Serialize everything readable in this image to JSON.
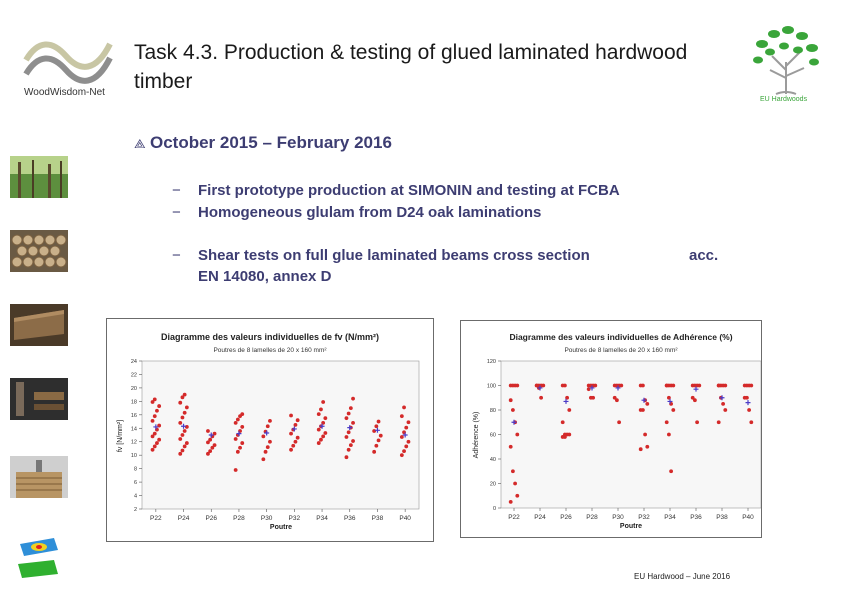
{
  "slide": {
    "title": "Task 4.3. Production & testing of glued laminated hardwood timber",
    "date_bullet": "October 2015 – February 2016",
    "subbullets": [
      "First prototype production at SIMONIN and testing at FCBA",
      "Homogeneous glulam from D24 oak laminations"
    ],
    "shear_line1": "Shear tests on full glue laminated beams cross section",
    "shear_acc": "acc.",
    "shear_line2": "EN 14080, annex D",
    "footer": "EU Hardwood – June 2016",
    "logo_left_text": "WoodWisdom-Net",
    "logo_right_text": "EU Hardwoods"
  },
  "icons": [
    "woodwisdom-logo-icon",
    "eu-hardwoods-tree-logo-icon",
    "forest-photo-icon",
    "log-pile-photo-icon",
    "timber-photo-icon",
    "workshop-photo-icon",
    "glulam-stack-photo-icon",
    "fem-model-icon"
  ],
  "colors": {
    "points": "#d42a2a",
    "means": "#4b3cc8",
    "title_text": "#1a1a1a",
    "bullet_text": "#3d3d72",
    "plot_bg": "#f7f7f7"
  },
  "chart_data": [
    {
      "type": "scatter",
      "title": "Diagramme des valeurs individuelles de fv (N/mm²)",
      "subtitle": "Poutres de 8 lamelles de 20 x 160 mm²",
      "xlabel": "Poutre",
      "ylabel": "fv [N/mm²]",
      "categories": [
        "P22",
        "P24",
        "P26",
        "P28",
        "P30",
        "P32",
        "P34",
        "P36",
        "P38",
        "P40"
      ],
      "ylim": [
        2,
        24
      ],
      "yticks": [
        2,
        4,
        6,
        8,
        10,
        12,
        14,
        16,
        18,
        20,
        22,
        24
      ],
      "grid": false,
      "series": [
        {
          "values": [
            [
              10.8,
              11.3,
              11.8,
              12.3,
              12.8,
              13.2,
              13.8,
              14.4,
              15.1,
              15.8,
              16.6,
              17.3,
              17.9,
              18.3
            ],
            [
              10.2,
              10.7,
              11.3,
              11.8,
              12.4,
              13.0,
              13.6,
              14.2,
              14.8,
              15.6,
              16.3,
              17.1,
              17.8,
              18.6,
              19.0
            ],
            [
              10.2,
              10.6,
              11.1,
              11.5,
              11.9,
              12.3,
              12.8,
              13.2,
              13.6
            ],
            [
              7.8,
              10.5,
              11.1,
              11.8,
              12.4,
              13.0,
              13.6,
              14.2,
              14.8,
              15.3,
              15.8,
              16.1
            ],
            [
              9.4,
              10.5,
              11.2,
              12.0,
              12.8,
              13.5,
              14.3,
              15.1
            ],
            [
              10.8,
              11.4,
              12.0,
              12.6,
              13.2,
              13.8,
              14.5,
              15.2,
              15.9
            ],
            [
              11.8,
              12.3,
              12.8,
              13.3,
              13.8,
              14.3,
              14.8,
              15.5,
              16.1,
              16.8,
              17.9
            ],
            [
              9.7,
              10.8,
              11.5,
              12.1,
              12.7,
              13.4,
              14.1,
              14.8,
              15.5,
              16.2,
              17.0,
              18.4
            ],
            [
              10.5,
              11.4,
              12.2,
              12.9,
              13.6,
              14.3,
              15.0
            ],
            [
              10.0,
              10.6,
              11.3,
              12.0,
              12.7,
              13.4,
              14.1,
              14.9,
              15.8,
              17.1
            ]
          ]
        },
        {
          "values": [
            14.2,
            14.3,
            13.0,
            13.2,
            13.3,
            13.9,
            14.3,
            14.1,
            13.7,
            13.0
          ]
        }
      ]
    },
    {
      "type": "scatter",
      "title": "Diagramme des valeurs individuelles de Adhérence (%)",
      "subtitle": "Poutres de 8 lamelles de 20 x 160 mm²",
      "xlabel": "Poutre",
      "ylabel": "Adhérence (%)",
      "categories": [
        "P22",
        "P24",
        "P26",
        "P28",
        "P30",
        "P32",
        "P34",
        "P36",
        "P38",
        "P40"
      ],
      "ylim": [
        0,
        120
      ],
      "yticks": [
        0,
        20,
        40,
        60,
        80,
        100,
        120
      ],
      "grid": false,
      "series": [
        {
          "values": [
            [
              100,
              100,
              100,
              100,
              88,
              80,
              70,
              60,
              50,
              30,
              20,
              10,
              5
            ],
            [
              100,
              100,
              100,
              100,
              100,
              98,
              90
            ],
            [
              100,
              100,
              90,
              80,
              70,
              60,
              60,
              60,
              58,
              58
            ],
            [
              100,
              100,
              100,
              100,
              97,
              90,
              90
            ],
            [
              100,
              100,
              100,
              100,
              90,
              88,
              70
            ],
            [
              100,
              100,
              88,
              85,
              80,
              80,
              60,
              50,
              48
            ],
            [
              100,
              100,
              100,
              100,
              100,
              90,
              85,
              80,
              70,
              60,
              30
            ],
            [
              100,
              100,
              100,
              100,
              90,
              88,
              70
            ],
            [
              100,
              100,
              100,
              100,
              100,
              90,
              85,
              80,
              70
            ],
            [
              100,
              100,
              100,
              100,
              90,
              90,
              80,
              70
            ]
          ]
        },
        {
          "values": [
            70,
            98,
            87,
            98,
            98,
            88,
            87,
            97,
            90,
            86
          ]
        }
      ]
    }
  ]
}
